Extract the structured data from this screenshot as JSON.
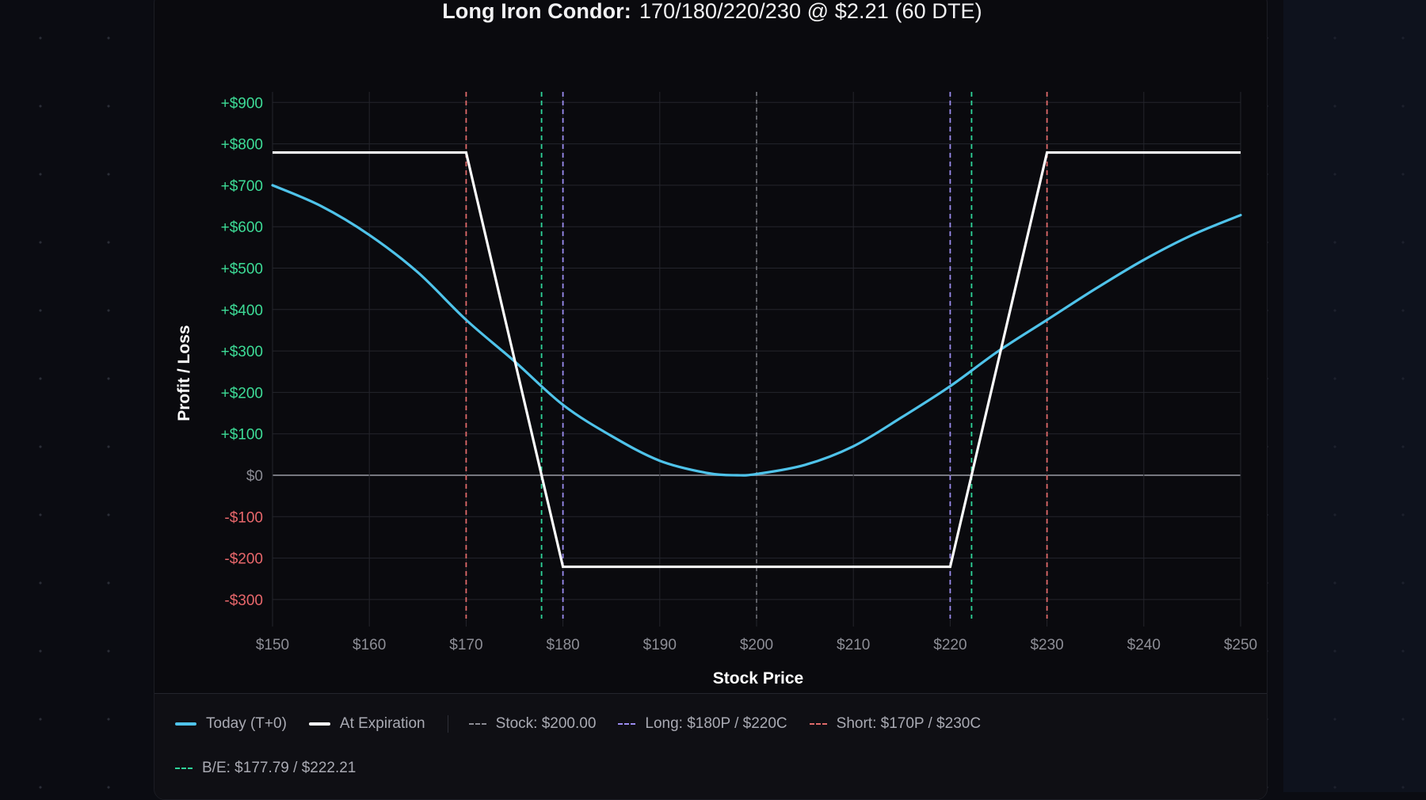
{
  "title": {
    "strategy": "Long Iron Condor:",
    "details": "170/180/220/230 @ $2.21 (60 DTE)"
  },
  "colors": {
    "today": "#4fc3ea",
    "expiration": "#ffffff",
    "stock": "#8a8b93",
    "long": "#9b8cf0",
    "short": "#e06a6a",
    "breakeven": "#2fd49a",
    "positive_tick": "#3ddc97",
    "negative_tick": "#e8676b",
    "zero_tick": "#8a8b93"
  },
  "legend": {
    "today": "Today (T+0)",
    "expiration": "At Expiration",
    "stock": "Stock: $200.00",
    "long": "Long: $180P / $220C",
    "short": "Short: $170P / $230C",
    "breakeven": "B/E: $177.79 / $222.21"
  },
  "chart_data": {
    "type": "line",
    "title": "Long Iron Condor: 170/180/220/230 @ $2.21 (60 DTE)",
    "xlabel": "Stock Price",
    "ylabel": "Profit / Loss",
    "xlim": [
      150,
      250
    ],
    "ylim": [
      -300,
      900
    ],
    "grid": true,
    "legend_position": "bottom",
    "x_ticks": [
      "$150",
      "$160",
      "$170",
      "$180",
      "$190",
      "$200",
      "$210",
      "$220",
      "$230",
      "$240",
      "$250"
    ],
    "y_ticks": [
      "+$900",
      "+$800",
      "+$700",
      "+$600",
      "+$500",
      "+$400",
      "+$300",
      "+$200",
      "+$100",
      "$0",
      "-$100",
      "-$200",
      "-$300"
    ],
    "series": [
      {
        "name": "Today (T+0)",
        "x": [
          150,
          155,
          160,
          165,
          170,
          175,
          180,
          185,
          190,
          195,
          198,
          200,
          205,
          210,
          215,
          220,
          225,
          230,
          235,
          240,
          245,
          250
        ],
        "values": [
          700,
          650,
          580,
          490,
          375,
          275,
          170,
          95,
          35,
          5,
          0,
          3,
          25,
          70,
          140,
          215,
          300,
          375,
          450,
          520,
          580,
          628
        ]
      },
      {
        "name": "At Expiration",
        "x": [
          150,
          170,
          180,
          220,
          230,
          250
        ],
        "values": [
          779,
          779,
          -221,
          -221,
          779,
          779
        ]
      }
    ],
    "vertical_lines": [
      {
        "name": "Stock",
        "x": 200.0,
        "style": "dashed"
      },
      {
        "name": "Long",
        "x": [
          180,
          220
        ],
        "style": "dashed"
      },
      {
        "name": "Short",
        "x": [
          170,
          230
        ],
        "style": "dashed"
      },
      {
        "name": "B/E",
        "x": [
          177.79,
          222.21
        ],
        "style": "dashed"
      }
    ],
    "annotations": []
  }
}
